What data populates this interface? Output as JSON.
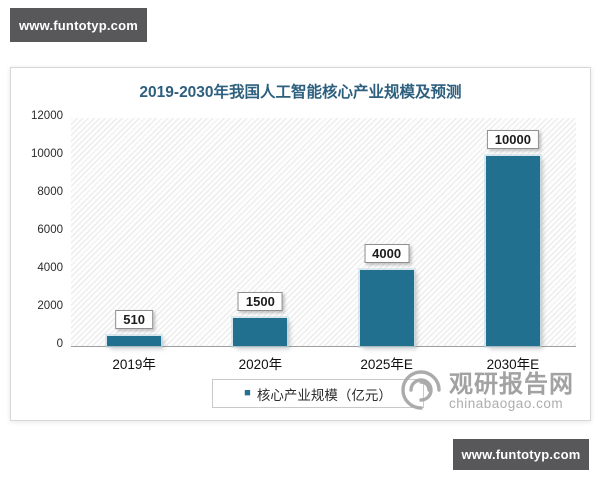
{
  "badges": {
    "top_left": "www.funtotyp.com",
    "bottom_right": "www.funtotyp.com"
  },
  "chart": {
    "title": "2019-2030年我国人工智能核心产业规模及预测",
    "legend_marker": "■",
    "legend_label": "核心产业规模（亿元）"
  },
  "chart_data": {
    "type": "bar",
    "title": "2019-2030年我国人工智能核心产业规模及预测",
    "categories": [
      "2019年",
      "2020年",
      "2025年E",
      "2030年E"
    ],
    "values": [
      510,
      1500,
      4000,
      10000
    ],
    "data_labels": [
      "510",
      "1500",
      "4000",
      "10000"
    ],
    "series_name": "核心产业规模（亿元）",
    "ylim": [
      0,
      12000
    ],
    "yticks": [
      0,
      2000,
      4000,
      6000,
      8000,
      10000,
      12000
    ],
    "grid": false,
    "legend_position": "bottom",
    "bar_color": "#21708f",
    "title_color": "#2d5f7e",
    "plot_background": "diagonal-hatch"
  },
  "watermark": {
    "name": "观研报告网",
    "url": "chinabaogao.com"
  }
}
